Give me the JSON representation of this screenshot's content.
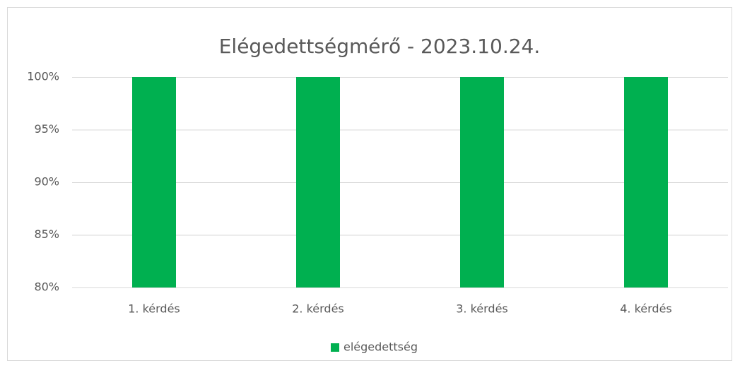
{
  "chart_data": {
    "type": "bar",
    "title": "Elégedettségmérő - 2023.10.24.",
    "categories": [
      "1. kérdés",
      "2. kérdés",
      "3. kérdés",
      "4. kérdés"
    ],
    "series": [
      {
        "name": "elégedettség",
        "color": "#00b050",
        "values": [
          100,
          100,
          100,
          100
        ]
      }
    ],
    "ylim": [
      80,
      100
    ],
    "yticks": [
      {
        "value": 80,
        "label": "80%"
      },
      {
        "value": 85,
        "label": "85%"
      },
      {
        "value": 90,
        "label": "90%"
      },
      {
        "value": 95,
        "label": "95%"
      },
      {
        "value": 100,
        "label": "100%"
      }
    ],
    "grid": true,
    "legend": "bottom"
  }
}
